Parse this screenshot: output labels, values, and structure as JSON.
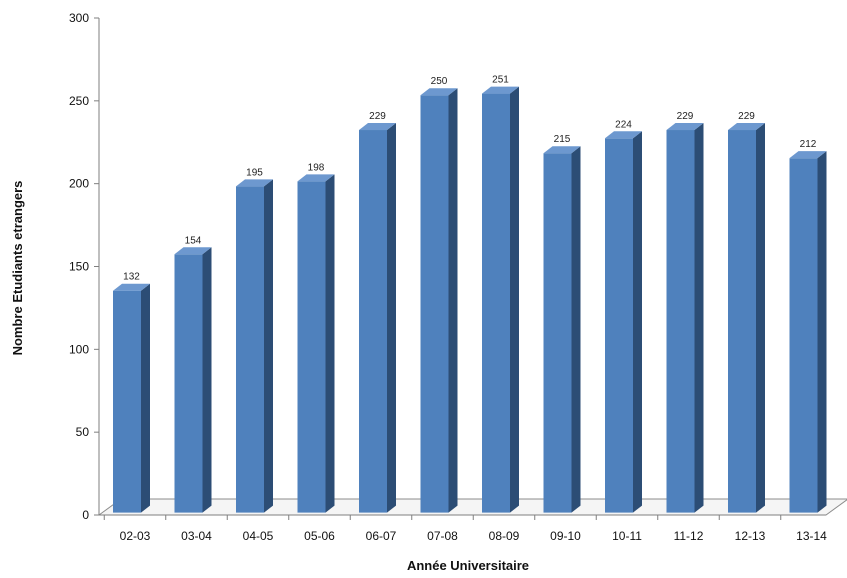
{
  "chart_data": {
    "type": "bar",
    "title": "",
    "xlabel": "Année Universitaire",
    "ylabel": "Nombre Etudiants etrangers",
    "categories": [
      "02-03",
      "03-04",
      "04-05",
      "05-06",
      "06-07",
      "07-08",
      "08-09",
      "09-10",
      "10-11",
      "11-12",
      "12-13",
      "13-14"
    ],
    "values": [
      132,
      154,
      195,
      198,
      229,
      250,
      251,
      215,
      224,
      229,
      229,
      212
    ],
    "ylim": [
      0,
      300
    ],
    "yticks": [
      0,
      50,
      100,
      150,
      200,
      250,
      300
    ],
    "grid": false,
    "legend": "none",
    "colors": {
      "front": "#4f81bd",
      "side": "#2c4d75",
      "top": "#6d98cf",
      "floor": "#f5f5f5"
    }
  }
}
